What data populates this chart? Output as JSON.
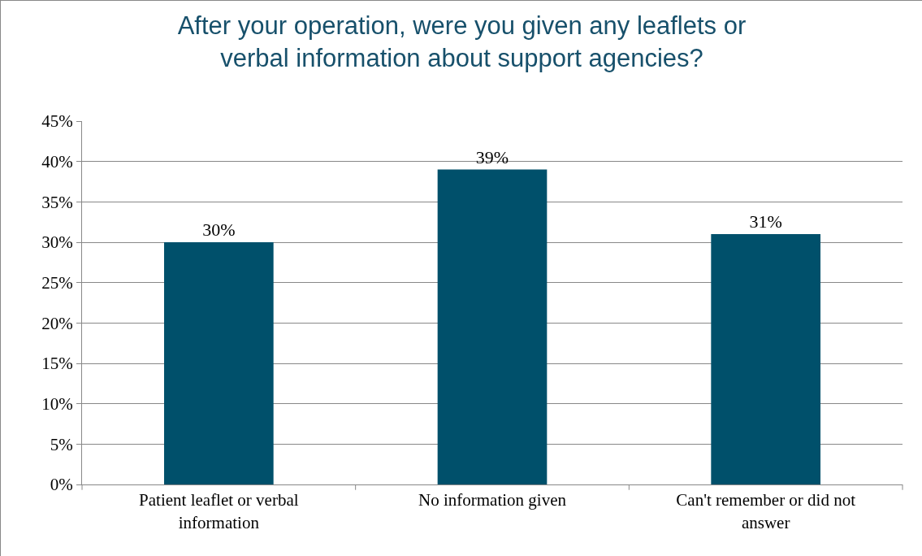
{
  "chart_data": {
    "type": "bar",
    "title": "After your operation, were you given any leaflets or verbal information about support agencies?",
    "categories": [
      "Patient leaflet or verbal information",
      "No information given",
      "Can't remember or did not answer"
    ],
    "values": [
      30,
      39,
      31
    ],
    "value_labels": [
      "30%",
      "39%",
      "31%"
    ],
    "color": "#00506b",
    "ylim": [
      0,
      45
    ],
    "yticks": [
      {
        "value": 0,
        "label": "0%"
      },
      {
        "value": 5,
        "label": "5%"
      },
      {
        "value": 10,
        "label": "10%"
      },
      {
        "value": 15,
        "label": "15%"
      },
      {
        "value": 20,
        "label": "20%"
      },
      {
        "value": 25,
        "label": "25%"
      },
      {
        "value": 30,
        "label": "30%"
      },
      {
        "value": 35,
        "label": "35%"
      },
      {
        "value": 40,
        "label": "40%"
      },
      {
        "value": 45,
        "label": "45%"
      }
    ],
    "grid": "y"
  }
}
